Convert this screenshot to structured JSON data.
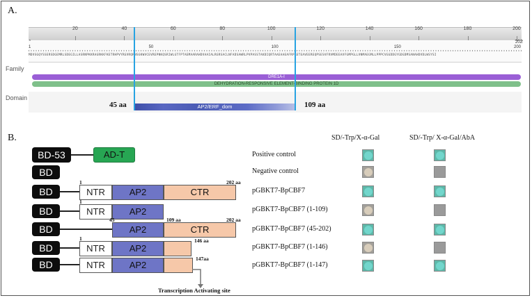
{
  "panel_a": {
    "label": "A.",
    "ruler_ticks": [
      "1",
      "20",
      "40",
      "60",
      "80",
      "100",
      "120",
      "140",
      "160",
      "180",
      "200",
      "202"
    ],
    "seq_ticks": [
      "1",
      "50",
      "100",
      "150",
      "200",
      "202"
    ],
    "sequence": "MDVSGQYSSERSDGEMRLSDEGILLASRNPKKRAGRKKFKETRHPVYRGVRQRNSGKWVCEVREPNKQSRIWLGTFPTAEMAARAHDVAAIALRGRSACLNFADSAWRLPVPASSTAKDIQRTAAEAAEAFRPAETEAVEEREQPSESVFRVMDEEAVFGMPGLLVNMAEGMLLPPPCVGGDDGYGDGDMSANAHDVDLWSYSI",
    "family_heading": "Family",
    "family_bar_1": "DRE1A-I",
    "family_bar_2": "DEHYDRATION-RESPONSIVE ELEMENT-BINDING PROTEIN 1D",
    "domain_heading": "Domain",
    "domain_name": "AP2/ERF_dom",
    "domain_start_label": "45 aa",
    "domain_end_label": "109 aa",
    "colors": {
      "family_bar_1": "#9a5fd6",
      "family_bar_2": "#7fc08a",
      "domain": "#4a5bb4",
      "marker": "#27a3e2"
    }
  },
  "panel_b": {
    "label": "B.",
    "col_headers": [
      "SD/-Trp/X-α-Gal",
      "SD/-Trp/ X-α-Gal/AbA"
    ],
    "segment_labels": {
      "bd": "BD",
      "bd53": "BD-53",
      "adt": "AD-T",
      "ntr": "NTR",
      "ap2": "AP2",
      "ctr": "CTR"
    },
    "position_labels": {
      "one": "1",
      "forty_five": "45",
      "aa202": "202 aa",
      "aa109": "109 aa",
      "aa146": "146 aa",
      "aa147": "147aa"
    },
    "activating_site": "Transcription Activating site",
    "rows": [
      {
        "name": "Positive control",
        "col1": "blue",
        "col2": "blue"
      },
      {
        "name": "Negative control",
        "col1": "beige",
        "col2": "empty"
      },
      {
        "name": "pGBKT7-BpCBF7",
        "col1": "blue",
        "col2": "blue"
      },
      {
        "name": "pGBKT7-BpCBF7 (1-109)",
        "col1": "beige",
        "col2": "empty"
      },
      {
        "name": "pGBKT7-BpCBF7 (45-202)",
        "col1": "blue",
        "col2": "blue"
      },
      {
        "name": "pGBKT7-BpCBF7 (1-146)",
        "col1": "beige",
        "col2": "empty"
      },
      {
        "name": "pGBKT7-BpCBF7 (1-147)",
        "col1": "blue",
        "col2": "blue"
      }
    ],
    "colors": {
      "ap2": "#6e75c6",
      "ctr": "#f6c8a9",
      "adt": "#27a653",
      "colony_blue": "#72d6cc",
      "colony_beige": "#d8cdbb",
      "no_growth": "#9a9a9a"
    }
  }
}
